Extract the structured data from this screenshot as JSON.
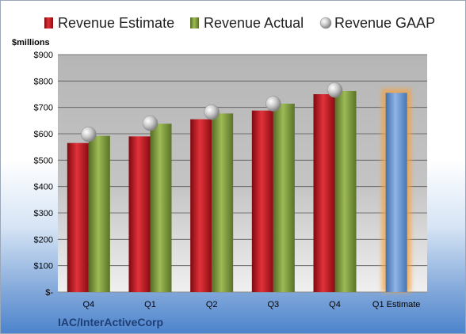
{
  "chart_data": {
    "type": "bar",
    "categories": [
      "Q4",
      "Q1",
      "Q2",
      "Q3",
      "Q4",
      "Q1 Estimate"
    ],
    "series": [
      {
        "name": "Revenue Estimate",
        "kind": "bar",
        "color": "#c0141c",
        "values": [
          565,
          590,
          655,
          688,
          750,
          null
        ]
      },
      {
        "name": "Revenue Actual",
        "kind": "bar",
        "color": "#7f9c3a",
        "values": [
          592,
          638,
          677,
          714,
          762,
          null
        ]
      },
      {
        "name": "Revenue GAAP",
        "kind": "marker",
        "color": "#a6a6a6",
        "values": [
          598,
          640,
          682,
          714,
          766,
          null
        ]
      }
    ],
    "forecast": {
      "category": "Q1 Estimate",
      "value": 755,
      "color": "#5b8fd0",
      "glow": "#f5a23c"
    },
    "ylabel": "$millions",
    "ylim": [
      0,
      900
    ],
    "yticks": [
      0,
      100,
      200,
      300,
      400,
      500,
      600,
      700,
      800,
      900
    ],
    "ytick_labels": [
      "$-",
      "$100",
      "$200",
      "$300",
      "$400",
      "$500",
      "$600",
      "$700",
      "$800",
      "$900"
    ],
    "grid": true,
    "legend_position": "top"
  },
  "company": "IAC/InterActiveCorp"
}
